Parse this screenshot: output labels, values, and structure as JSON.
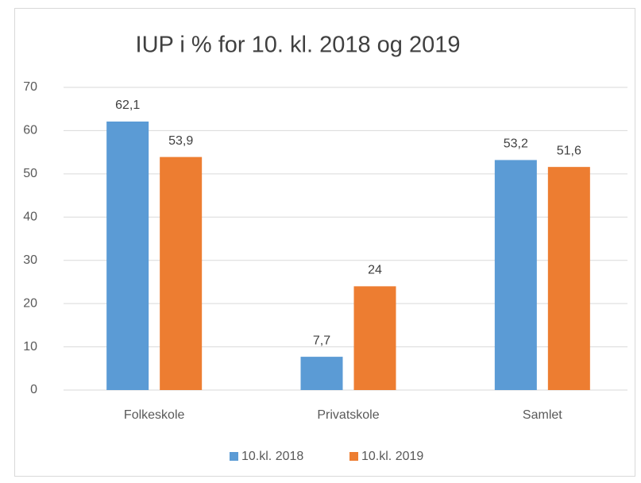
{
  "chart_data": {
    "type": "bar",
    "title": "IUP i % for 10. kl. 2018 og 2019",
    "categories": [
      "Folkeskole",
      "Privatskole",
      "Samlet"
    ],
    "series": [
      {
        "name": "10.kl. 2018",
        "color": "#5b9bd5",
        "values": [
          62.1,
          7.7,
          53.2
        ],
        "value_labels": [
          "62,1",
          "7,7",
          "53,2"
        ]
      },
      {
        "name": "10.kl. 2019",
        "color": "#ed7d31",
        "values": [
          53.9,
          24,
          51.6
        ],
        "value_labels": [
          "53,9",
          "24",
          "51,6"
        ]
      }
    ],
    "ylim": [
      0,
      70
    ],
    "yticks": [
      0,
      10,
      20,
      30,
      40,
      50,
      60,
      70
    ],
    "grid": true,
    "legend": "bottom"
  }
}
